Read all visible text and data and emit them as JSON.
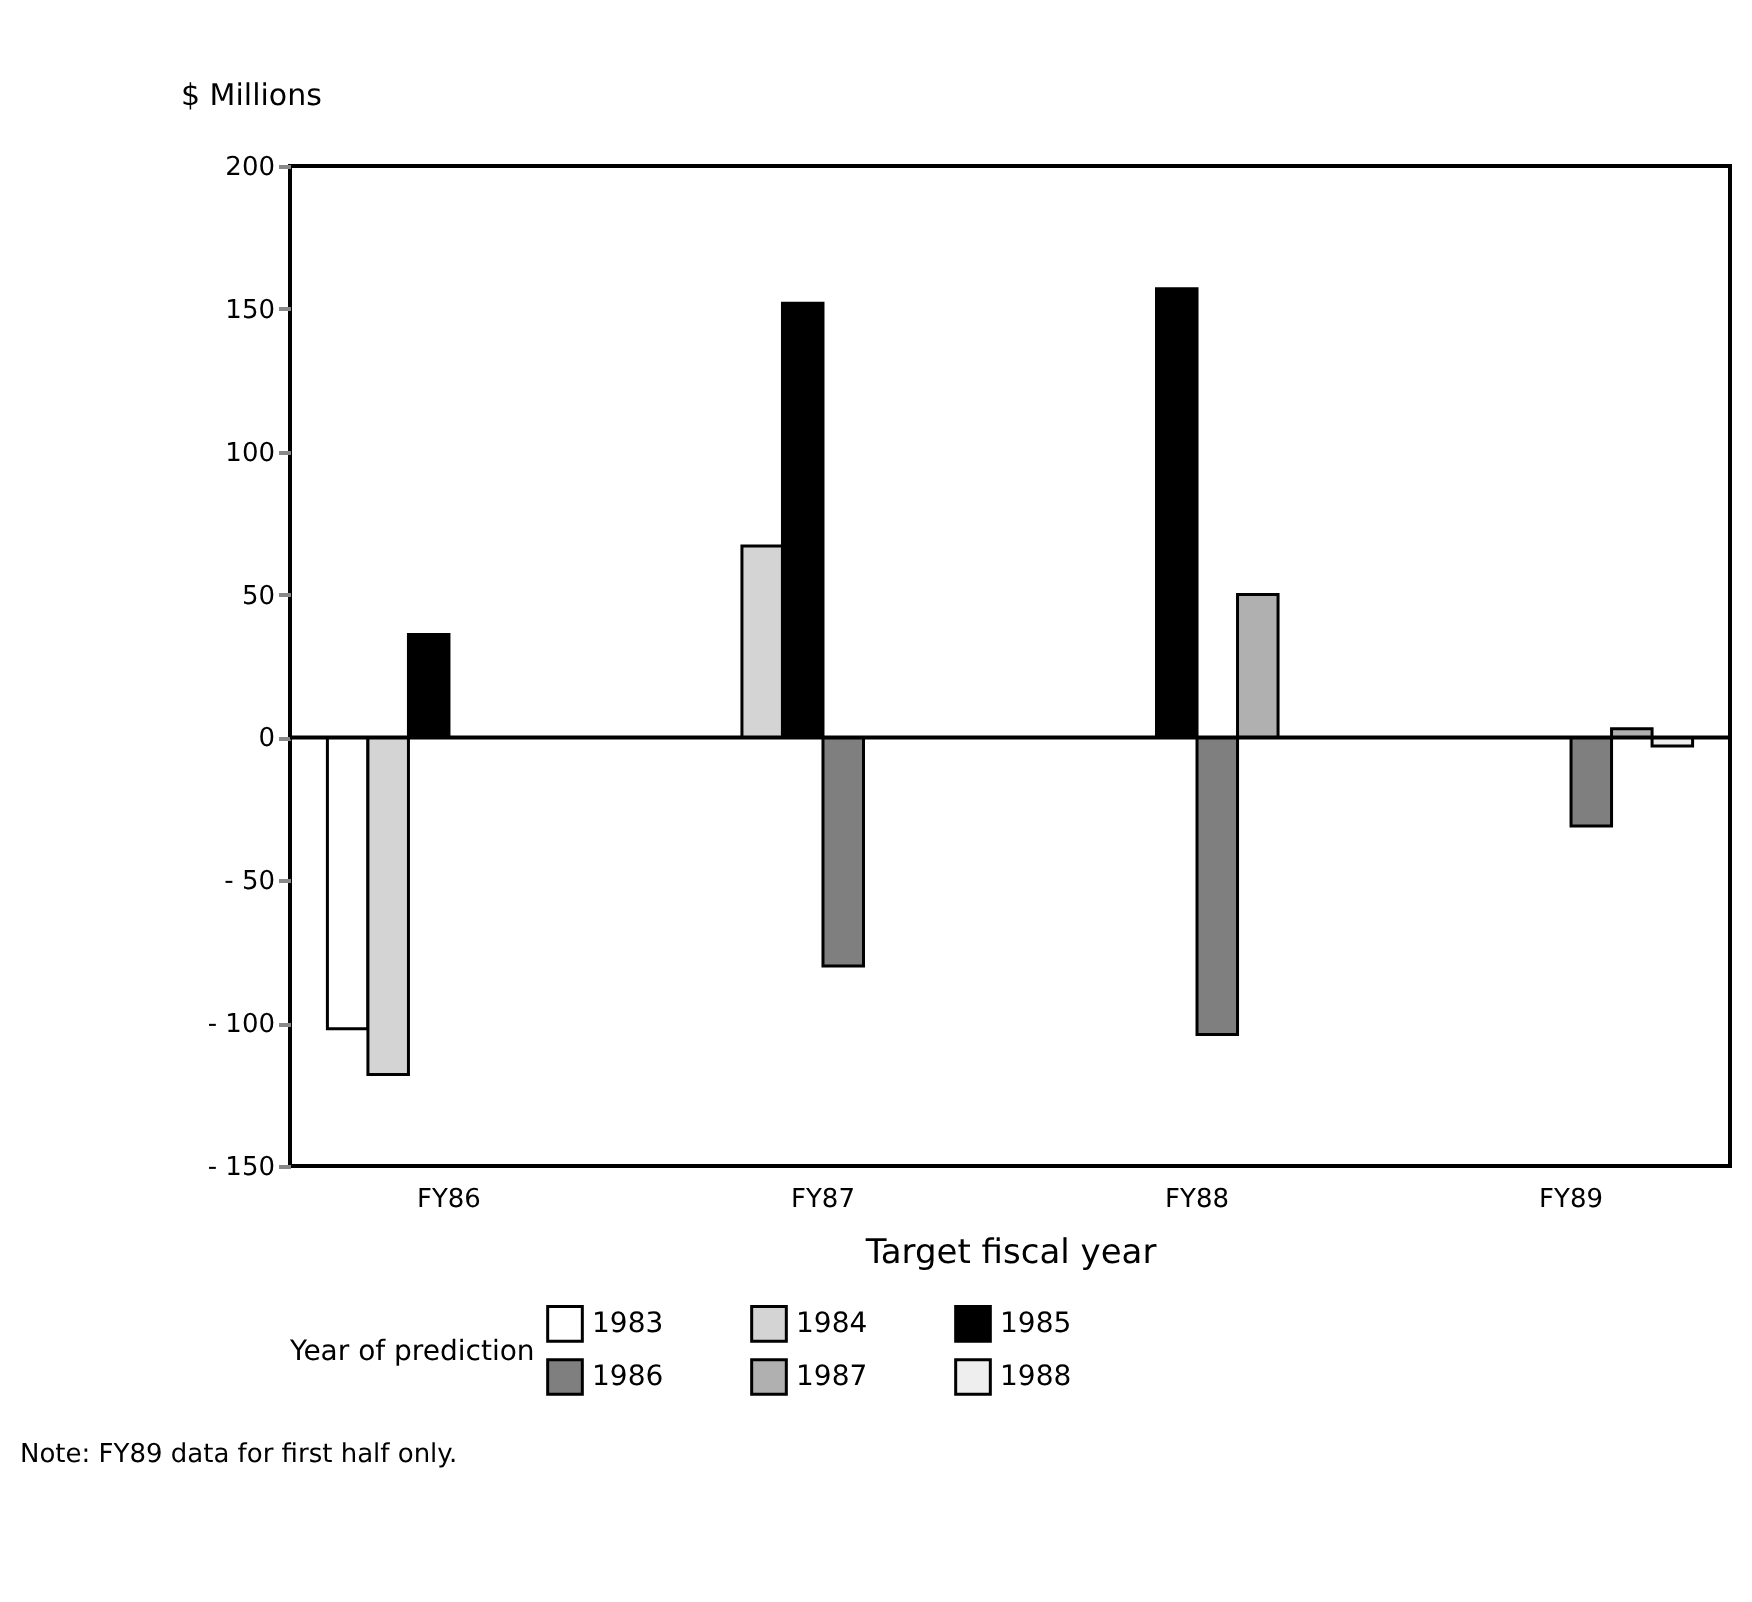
{
  "chart_data": {
    "type": "bar",
    "ylabel": "$ Millions",
    "xlabel": "Target fiscal year",
    "legend_title": "Year of prediction",
    "categories": [
      "FY86",
      "FY87",
      "FY88",
      "FY89"
    ],
    "series": [
      {
        "name": "1983",
        "color": "#ffffff",
        "values": [
          -102,
          null,
          null,
          null
        ]
      },
      {
        "name": "1984",
        "color": "#d4d4d4",
        "values": [
          -118,
          67,
          null,
          null
        ]
      },
      {
        "name": "1985",
        "color": "#000000",
        "values": [
          36,
          152,
          157,
          null
        ]
      },
      {
        "name": "1986",
        "color": "#7f7f7f",
        "values": [
          null,
          -80,
          -104,
          -31
        ]
      },
      {
        "name": "1987",
        "color": "#b0b0b0",
        "values": [
          null,
          null,
          50,
          3
        ]
      },
      {
        "name": "1988",
        "color": "#eeeeee",
        "values": [
          null,
          null,
          null,
          -3
        ]
      }
    ],
    "ylim": [
      -150,
      200
    ],
    "yticks": [
      {
        "value": -150,
        "label": "- 150"
      },
      {
        "value": -100,
        "label": "- 100"
      },
      {
        "value": -50,
        "label": "- 50"
      },
      0,
      50,
      100,
      150,
      200
    ],
    "ref_lines": [
      {
        "axis": "y",
        "value": 0
      }
    ],
    "grid": false,
    "legend": "bottom",
    "annotations": [
      "Note: FY89 data for first half only."
    ]
  }
}
